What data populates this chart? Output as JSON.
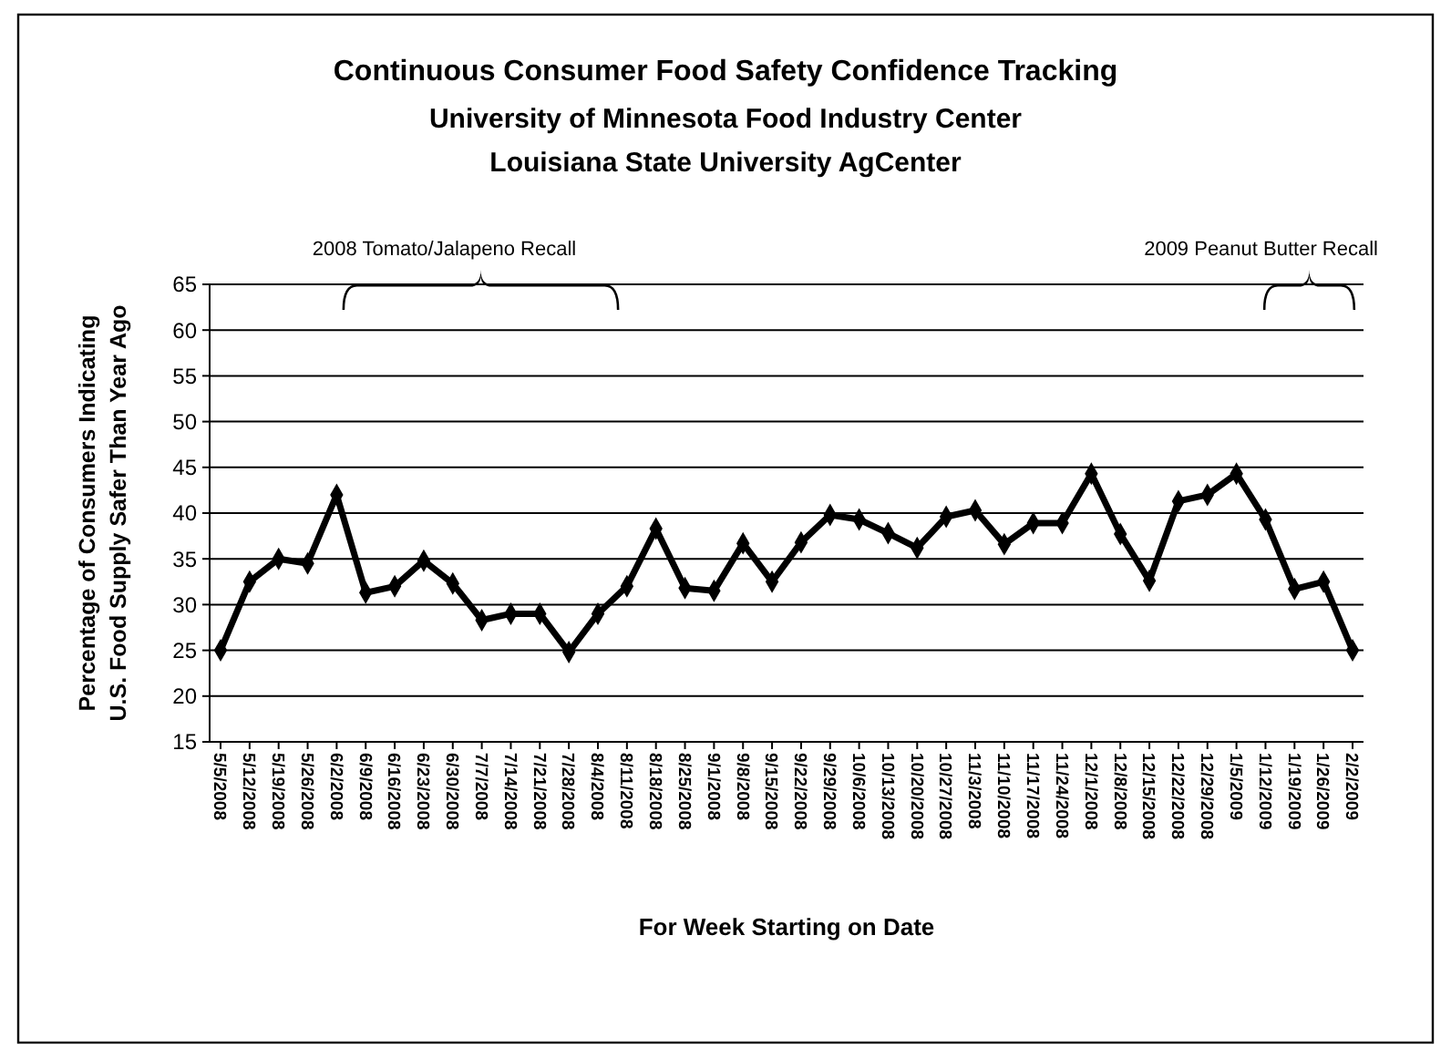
{
  "chart_data": {
    "type": "line",
    "title": "Continuous Consumer Food Safety Confidence Tracking",
    "subtitle": "University of Minnesota Food Industry Center\nLouisiana State University AgCenter",
    "xlabel": "For Week Starting on Date",
    "ylabel": "Percentage of Consumers Indicating\nU.S. Food Supply Safer Than Year Ago",
    "categories": [
      "5/5/2008",
      "5/12/2008",
      "5/19/2008",
      "5/26/2008",
      "6/2/2008",
      "6/9/2008",
      "6/16/2008",
      "6/23/2008",
      "6/30/2008",
      "7/7/2008",
      "7/14/2008",
      "7/21/2008",
      "7/28/2008",
      "8/4/2008",
      "8/11/2008",
      "8/18/2008",
      "8/25/2008",
      "9/1/2008",
      "9/8/2008",
      "9/15/2008",
      "9/22/2008",
      "9/29/2008",
      "10/6/2008",
      "10/13/2008",
      "10/20/2008",
      "10/27/2008",
      "11/3/2008",
      "11/10/2008",
      "11/17/2008",
      "11/24/2008",
      "12/1/2008",
      "12/8/2008",
      "12/15/2008",
      "12/22/2008",
      "12/29/2008",
      "1/5/2009",
      "1/12/2009",
      "1/19/2009",
      "1/26/2009",
      "2/2/2009"
    ],
    "series": [
      {
        "color": "#000000",
        "values": [
          25,
          32.5,
          35,
          34.5,
          42,
          31.3,
          32,
          34.8,
          32.3,
          28.3,
          29,
          29,
          24.8,
          29,
          32,
          38.3,
          31.8,
          31.5,
          36.7,
          32.5,
          36.8,
          39.8,
          39.3,
          37.8,
          36.2,
          39.6,
          40.3,
          36.6,
          38.9,
          38.9,
          44.3,
          37.7,
          32.6,
          41.3,
          42,
          44.3,
          39.3,
          31.7,
          32.5,
          25
        ]
      }
    ],
    "ylim": [
      15,
      65
    ],
    "yticks": [
      15,
      20,
      25,
      30,
      35,
      40,
      45,
      50,
      55,
      60,
      65
    ],
    "grid": "y",
    "marker": "diamond",
    "line_style": "solid",
    "annotations": [
      "2008 Tomato/Jalapeno Recall",
      "2009 Peanut Butter Recall"
    ]
  }
}
